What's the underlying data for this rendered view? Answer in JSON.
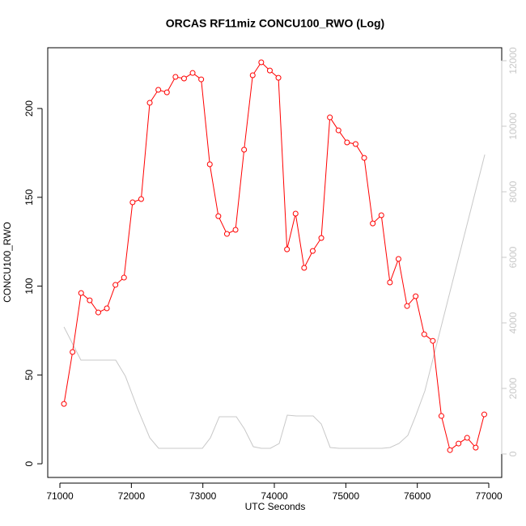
{
  "chart_data": {
    "type": "line",
    "title": "ORCAS RF11miz CONCU100_RWO (Log)",
    "x_label": "UTC Seconds",
    "y_label": "CONCU100_RWO",
    "xlim": [
      70830,
      77181
    ],
    "xticks": [
      71000,
      72000,
      73000,
      74000,
      75000,
      76000,
      77000
    ],
    "ylim": [
      -7.7,
      234.2
    ],
    "yticks": [
      0,
      50,
      100,
      150,
      200
    ],
    "y2lim": [
      -716,
      12395
    ],
    "y2ticks": [
      0,
      2000,
      4000,
      6000,
      8000,
      10000,
      12000
    ],
    "series": [
      {
        "color": "#ff0000",
        "markers": true,
        "x": [
          71057,
          71177,
          71297,
          71417,
          71537,
          71657,
          71777,
          71897,
          72017,
          72137,
          72257,
          72377,
          72497,
          72617,
          72737,
          72857,
          72977,
          73097,
          73217,
          73337,
          73457,
          73577,
          73697,
          73817,
          73937,
          74057,
          74177,
          74297,
          74417,
          74537,
          74657,
          74777,
          74897,
          75017,
          75137,
          75257,
          75377,
          75497,
          75617,
          75737,
          75857,
          75977,
          76097,
          76217,
          76337,
          76457,
          76577,
          76697,
          76817,
          76937
        ],
        "values": [
          33.7,
          62.9,
          96.1,
          92.0,
          85.2,
          87.5,
          100.7,
          104.8,
          147.2,
          149.0,
          203.2,
          210.5,
          209.1,
          217.8,
          216.9,
          220.0,
          216.4,
          168.6,
          139.4,
          129.4,
          131.7,
          176.8,
          218.7,
          226.0,
          221.4,
          217.3,
          120.7,
          140.8,
          110.3,
          119.8,
          127.1,
          195.0,
          187.7,
          180.9,
          180.0,
          172.2,
          135.3,
          139.9,
          102.1,
          115.3,
          88.8,
          94.3,
          72.9,
          69.2,
          26.9,
          7.7,
          11.4,
          14.6,
          9.1,
          27.8
        ]
      },
      {
        "color": "#c8c8c8",
        "axis": "y2",
        "markers": false,
        "x": [
          71057,
          71294,
          71781,
          71917,
          72087,
          72257,
          72381,
          72993,
          73106,
          73230,
          73468,
          73581,
          73706,
          73819,
          73944,
          74068,
          74181,
          74306,
          74543,
          74657,
          74781,
          74906,
          75506,
          75619,
          75744,
          75868,
          75981,
          76106,
          76944
        ],
        "values": [
          3877,
          2864,
          2864,
          2370,
          1383,
          494,
          173,
          173,
          494,
          1136,
          1136,
          765,
          222,
          173,
          173,
          321,
          1185,
          1160,
          1160,
          914,
          198,
          173,
          173,
          198,
          321,
          568,
          1185,
          1926,
          9136
        ]
      }
    ]
  }
}
